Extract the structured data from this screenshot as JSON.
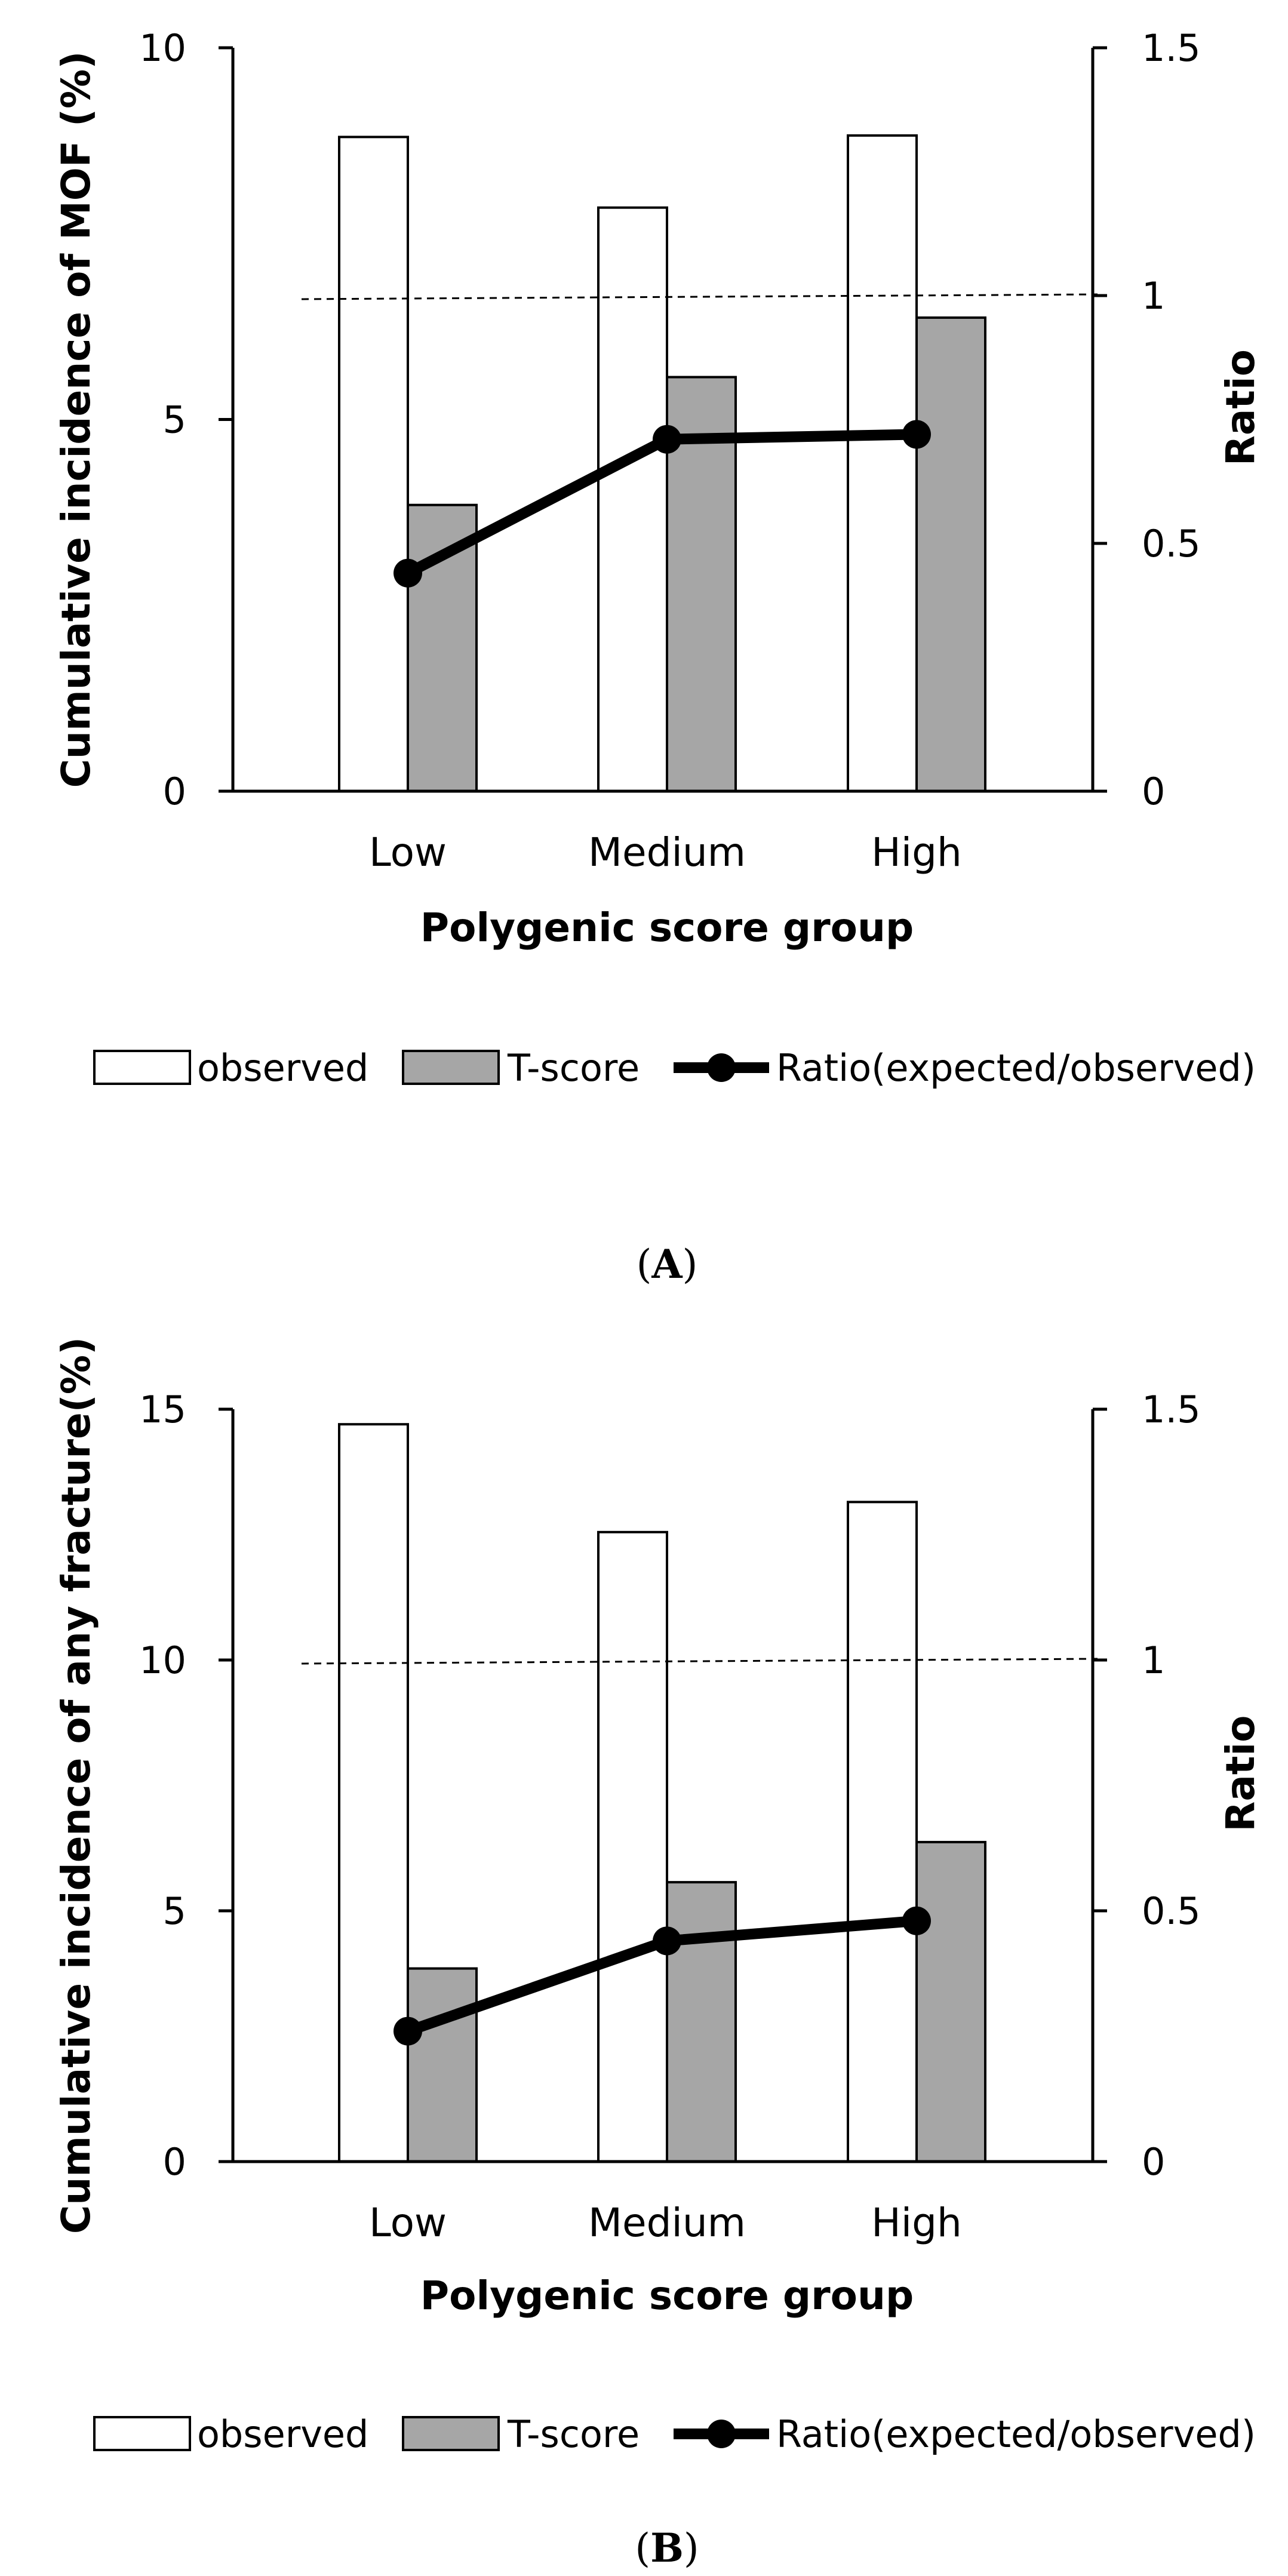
{
  "chart_data": [
    {
      "panel": "A",
      "type": "bar",
      "panel_label": "(A)",
      "categories": [
        "Low",
        "Medium",
        "High"
      ],
      "series": [
        {
          "name": "observed",
          "axis": "left",
          "kind": "bar",
          "values": [
            8.8,
            7.85,
            8.82
          ]
        },
        {
          "name": "T-score",
          "axis": "left",
          "kind": "bar",
          "values": [
            3.85,
            5.57,
            6.37
          ]
        },
        {
          "name": "Ratio(expected/observed)",
          "axis": "right",
          "kind": "line",
          "values": [
            0.44,
            0.71,
            0.72
          ]
        }
      ],
      "reference_line": {
        "axis": "right",
        "value": 1.0,
        "style": "dashed"
      },
      "xlabel": "Polygenic score group",
      "ylabel": "Cumulative incidence of MOF (%)",
      "y2label": "Ratio",
      "ylim": [
        0,
        10
      ],
      "y2lim": [
        0,
        1.5
      ],
      "yticks": [
        "0",
        "5",
        "10"
      ],
      "y2ticks": [
        "0",
        "0.5",
        "1",
        "1.5"
      ],
      "legend": [
        "observed",
        "T-score",
        "Ratio(expected/observed)"
      ],
      "legend_position": "bottom"
    },
    {
      "panel": "B",
      "type": "bar",
      "panel_label": "(B)",
      "categories": [
        "Low",
        "Medium",
        "High"
      ],
      "series": [
        {
          "name": "observed",
          "axis": "left",
          "kind": "bar",
          "values": [
            14.7,
            12.55,
            13.15
          ]
        },
        {
          "name": "T-score",
          "axis": "left",
          "kind": "bar",
          "values": [
            3.85,
            5.57,
            6.37
          ]
        },
        {
          "name": "Ratio(expected/observed)",
          "axis": "right",
          "kind": "line",
          "values": [
            0.26,
            0.44,
            0.48
          ]
        }
      ],
      "reference_line": {
        "axis": "right",
        "value": 1.0,
        "style": "dashed"
      },
      "xlabel": "Polygenic score group",
      "ylabel": "Cumulative incidence of any fracture(%)",
      "y2label": "Ratio",
      "ylim": [
        0,
        15
      ],
      "y2lim": [
        0,
        1.5
      ],
      "yticks": [
        "0",
        "5",
        "10",
        "15"
      ],
      "y2ticks": [
        "0",
        "0.5",
        "1",
        "1.5"
      ],
      "legend": [
        "observed",
        "T-score",
        "Ratio(expected/observed)"
      ],
      "legend_position": "bottom"
    }
  ]
}
